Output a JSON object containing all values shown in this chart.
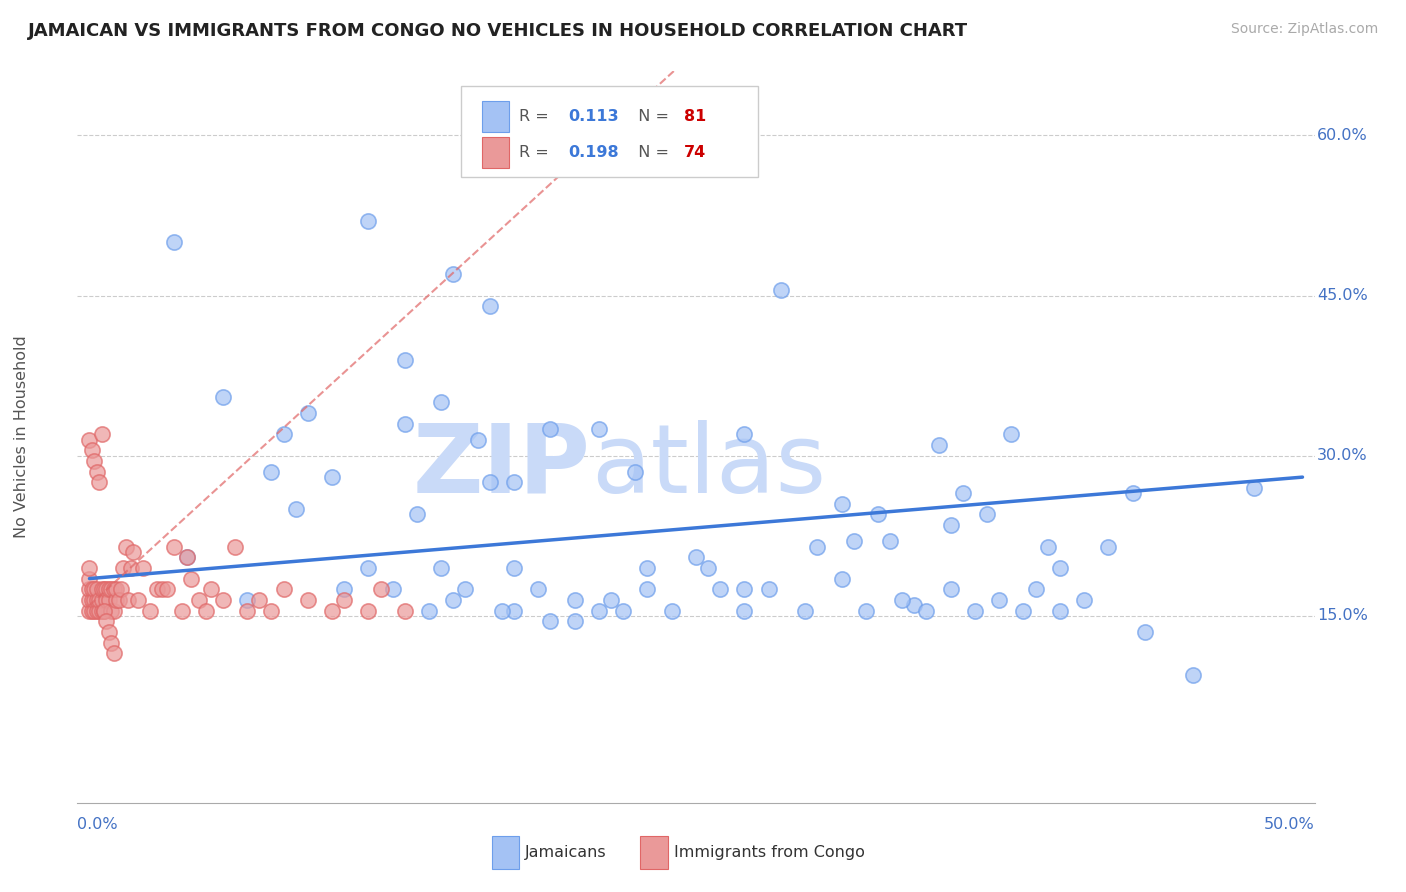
{
  "title": "JAMAICAN VS IMMIGRANTS FROM CONGO NO VEHICLES IN HOUSEHOLD CORRELATION CHART",
  "source": "Source: ZipAtlas.com",
  "ylabel": "No Vehicles in Household",
  "blue_color": "#a4c2f4",
  "pink_color": "#ea9999",
  "blue_edge": "#6d9eeb",
  "pink_edge": "#e06666",
  "line_blue": "#3c78d8",
  "line_pink": "#cc4444",
  "watermark_zip_color": "#c9daf8",
  "watermark_atlas_color": "#c9daf8",
  "xlim": [
    -0.005,
    0.505
  ],
  "ylim": [
    -0.025,
    0.66
  ],
  "jamaicans_x": [
    0.035,
    0.115,
    0.08,
    0.13,
    0.15,
    0.165,
    0.175,
    0.145,
    0.155,
    0.13,
    0.145,
    0.175,
    0.19,
    0.21,
    0.2,
    0.225,
    0.23,
    0.255,
    0.27,
    0.27,
    0.295,
    0.31,
    0.31,
    0.325,
    0.34,
    0.355,
    0.36,
    0.38,
    0.395,
    0.285,
    0.315,
    0.33,
    0.35,
    0.37,
    0.4,
    0.42,
    0.435,
    0.455,
    0.48,
    0.04,
    0.055,
    0.065,
    0.075,
    0.085,
    0.09,
    0.1,
    0.105,
    0.115,
    0.125,
    0.135,
    0.14,
    0.15,
    0.16,
    0.165,
    0.17,
    0.175,
    0.185,
    0.19,
    0.2,
    0.21,
    0.215,
    0.22,
    0.23,
    0.24,
    0.25,
    0.26,
    0.27,
    0.28,
    0.3,
    0.32,
    0.335,
    0.345,
    0.355,
    0.365,
    0.375,
    0.385,
    0.39,
    0.4,
    0.41,
    0.43
  ],
  "jamaicans_y": [
    0.5,
    0.52,
    0.32,
    0.39,
    0.47,
    0.44,
    0.275,
    0.195,
    0.175,
    0.33,
    0.35,
    0.155,
    0.145,
    0.325,
    0.165,
    0.285,
    0.195,
    0.195,
    0.32,
    0.175,
    0.155,
    0.185,
    0.255,
    0.245,
    0.16,
    0.235,
    0.265,
    0.32,
    0.215,
    0.455,
    0.22,
    0.22,
    0.31,
    0.245,
    0.195,
    0.215,
    0.135,
    0.095,
    0.27,
    0.205,
    0.355,
    0.165,
    0.285,
    0.25,
    0.34,
    0.28,
    0.175,
    0.195,
    0.175,
    0.245,
    0.155,
    0.165,
    0.315,
    0.275,
    0.155,
    0.195,
    0.175,
    0.325,
    0.145,
    0.155,
    0.165,
    0.155,
    0.175,
    0.155,
    0.205,
    0.175,
    0.155,
    0.175,
    0.215,
    0.155,
    0.165,
    0.155,
    0.175,
    0.155,
    0.165,
    0.155,
    0.175,
    0.155,
    0.165,
    0.265
  ],
  "congo_x": [
    0.0,
    0.0,
    0.0,
    0.0,
    0.0,
    0.001,
    0.001,
    0.001,
    0.002,
    0.002,
    0.002,
    0.003,
    0.003,
    0.003,
    0.004,
    0.004,
    0.005,
    0.005,
    0.005,
    0.006,
    0.006,
    0.007,
    0.007,
    0.008,
    0.008,
    0.009,
    0.009,
    0.01,
    0.01,
    0.011,
    0.011,
    0.012,
    0.013,
    0.014,
    0.015,
    0.016,
    0.017,
    0.018,
    0.02,
    0.022,
    0.025,
    0.028,
    0.03,
    0.032,
    0.035,
    0.038,
    0.04,
    0.042,
    0.045,
    0.048,
    0.05,
    0.055,
    0.06,
    0.065,
    0.07,
    0.075,
    0.08,
    0.09,
    0.1,
    0.105,
    0.115,
    0.12,
    0.13,
    0.0,
    0.001,
    0.002,
    0.003,
    0.004,
    0.005,
    0.006,
    0.007,
    0.008,
    0.009,
    0.01
  ],
  "congo_y": [
    0.155,
    0.165,
    0.175,
    0.185,
    0.195,
    0.155,
    0.165,
    0.175,
    0.155,
    0.165,
    0.175,
    0.155,
    0.165,
    0.175,
    0.155,
    0.165,
    0.155,
    0.165,
    0.175,
    0.155,
    0.175,
    0.165,
    0.175,
    0.165,
    0.175,
    0.155,
    0.175,
    0.155,
    0.175,
    0.165,
    0.175,
    0.165,
    0.175,
    0.195,
    0.215,
    0.165,
    0.195,
    0.21,
    0.165,
    0.195,
    0.155,
    0.175,
    0.175,
    0.175,
    0.215,
    0.155,
    0.205,
    0.185,
    0.165,
    0.155,
    0.175,
    0.165,
    0.215,
    0.155,
    0.165,
    0.155,
    0.175,
    0.165,
    0.155,
    0.165,
    0.155,
    0.175,
    0.155,
    0.315,
    0.305,
    0.295,
    0.285,
    0.275,
    0.32,
    0.155,
    0.145,
    0.135,
    0.125,
    0.115
  ]
}
